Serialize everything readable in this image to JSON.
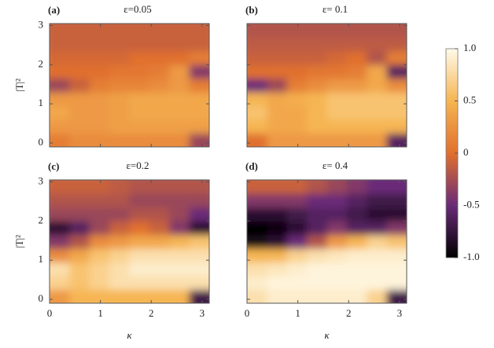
{
  "chart_data": [
    {
      "type": "heatmap",
      "label": "(a)",
      "title": "ε=0.05",
      "ylabel": "|T|²",
      "x": [
        0.196,
        0.589,
        0.982,
        1.374,
        1.767,
        2.16,
        2.553,
        2.945
      ],
      "y": [
        0.075,
        0.425,
        0.775,
        1.125,
        1.475,
        1.825,
        2.175,
        2.525,
        2.875
      ],
      "xlim": [
        0,
        3.1416
      ],
      "ylim": [
        -0.1,
        3.05
      ],
      "xticks": [
        0,
        1,
        2,
        3
      ],
      "yticks": [
        0,
        1,
        2,
        3
      ],
      "z": [
        [
          0.1,
          0.2,
          0.2,
          0.2,
          0.2,
          0.2,
          0.2,
          -0.3
        ],
        [
          0.3,
          0.3,
          0.3,
          0.35,
          0.35,
          0.35,
          0.35,
          0.35
        ],
        [
          0.4,
          0.3,
          0.3,
          0.35,
          0.4,
          0.4,
          0.4,
          0.4
        ],
        [
          0.3,
          0.3,
          0.3,
          0.35,
          0.4,
          0.4,
          0.4,
          0.4
        ],
        [
          -0.3,
          -0.1,
          0.1,
          0.15,
          0.15,
          0.2,
          0.3,
          0.1
        ],
        [
          0,
          0,
          0,
          0.05,
          0.05,
          0.1,
          0.3,
          -0.4
        ],
        [
          -0.05,
          -0.05,
          -0.05,
          -0.05,
          0,
          0,
          0,
          0.1
        ],
        [
          -0.1,
          -0.1,
          -0.1,
          -0.1,
          -0.1,
          -0.1,
          -0.1,
          -0.1
        ],
        [
          -0.1,
          -0.1,
          -0.1,
          -0.1,
          -0.1,
          -0.1,
          -0.1,
          -0.1
        ]
      ]
    },
    {
      "type": "heatmap",
      "label": "(b)",
      "title": "ε= 0.1",
      "x": [
        0.196,
        0.589,
        0.982,
        1.374,
        1.767,
        2.16,
        2.553,
        2.945
      ],
      "y": [
        0.075,
        0.425,
        0.775,
        1.125,
        1.475,
        1.825,
        2.175,
        2.525,
        2.875
      ],
      "xlim": [
        0,
        3.1416
      ],
      "ylim": [
        -0.1,
        3.05
      ],
      "xticks": [
        0,
        1,
        2,
        3
      ],
      "yticks": [
        0,
        1,
        2,
        3
      ],
      "z": [
        [
          0,
          0.3,
          0.3,
          0.3,
          0.3,
          0.3,
          0.3,
          -0.6
        ],
        [
          0.5,
          0.4,
          0.4,
          0.5,
          0.5,
          0.5,
          0.5,
          0.5
        ],
        [
          0.6,
          0.4,
          0.4,
          0.5,
          0.6,
          0.6,
          0.6,
          0.6
        ],
        [
          0.5,
          0.4,
          0.45,
          0.5,
          0.6,
          0.6,
          0.6,
          0.6
        ],
        [
          -0.5,
          -0.3,
          0.1,
          0.2,
          0.3,
          0.3,
          0.4,
          0.2
        ],
        [
          0,
          0,
          0,
          0.05,
          0.05,
          0.1,
          0.4,
          -0.6
        ],
        [
          -0.1,
          -0.1,
          -0.1,
          -0.1,
          -0.05,
          0,
          -0.2,
          0.1
        ],
        [
          -0.15,
          -0.15,
          -0.15,
          -0.15,
          -0.15,
          -0.15,
          -0.15,
          -0.15
        ],
        [
          -0.2,
          -0.2,
          -0.2,
          -0.2,
          -0.2,
          -0.2,
          -0.2,
          -0.2
        ]
      ]
    },
    {
      "type": "heatmap",
      "label": "(c)",
      "title": "ε=0.2",
      "ylabel": "|T|²",
      "xlabel": "κ",
      "x": [
        0.196,
        0.589,
        0.982,
        1.374,
        1.767,
        2.16,
        2.553,
        2.945
      ],
      "y": [
        0.075,
        0.425,
        0.775,
        1.125,
        1.475,
        1.825,
        2.175,
        2.525,
        2.875
      ],
      "xlim": [
        0,
        3.1416
      ],
      "ylim": [
        -0.1,
        3.05
      ],
      "xticks": [
        0,
        1,
        2,
        3
      ],
      "yticks": [
        0,
        1,
        2,
        3
      ],
      "z": [
        [
          0.3,
          0.5,
          0.5,
          0.5,
          0.5,
          0.5,
          0.5,
          -0.7
        ],
        [
          0.7,
          0.6,
          0.7,
          0.8,
          0.8,
          0.8,
          0.8,
          0.8
        ],
        [
          0.8,
          0.6,
          0.7,
          0.8,
          0.9,
          0.9,
          0.9,
          0.9
        ],
        [
          0.2,
          0.4,
          0.6,
          0.7,
          0.8,
          0.8,
          0.8,
          0.8
        ],
        [
          -0.4,
          -0.2,
          0.2,
          0.3,
          0.4,
          0.4,
          0.5,
          0.6
        ],
        [
          -0.8,
          -0.6,
          -0.3,
          -0.1,
          0,
          -0.1,
          -0.4,
          -0.8
        ],
        [
          -0.3,
          -0.3,
          -0.3,
          -0.3,
          -0.2,
          -0.2,
          -0.3,
          -0.5
        ],
        [
          -0.2,
          -0.2,
          -0.2,
          -0.2,
          -0.3,
          -0.3,
          -0.3,
          -0.3
        ],
        [
          -0.1,
          -0.1,
          -0.1,
          -0.15,
          -0.2,
          -0.2,
          -0.2,
          -0.2
        ]
      ]
    },
    {
      "type": "heatmap",
      "label": "(d)",
      "title": "ε= 0.4",
      "xlabel": "κ",
      "x": [
        0.196,
        0.589,
        0.982,
        1.374,
        1.767,
        2.16,
        2.553,
        2.945
      ],
      "y": [
        0.075,
        0.425,
        0.775,
        1.125,
        1.475,
        1.825,
        2.175,
        2.525,
        2.875
      ],
      "xlim": [
        0,
        3.1416
      ],
      "ylim": [
        -0.1,
        3.05
      ],
      "xticks": [
        0,
        1,
        2,
        3
      ],
      "yticks": [
        0,
        1,
        2,
        3
      ],
      "z": [
        [
          0.8,
          0.9,
          0.9,
          0.9,
          0.9,
          0.9,
          0.7,
          -0.7
        ],
        [
          0.9,
          0.95,
          0.95,
          0.95,
          0.95,
          0.95,
          0.95,
          0.95
        ],
        [
          0.8,
          0.85,
          0.9,
          0.95,
          0.95,
          0.95,
          0.95,
          0.95
        ],
        [
          0.5,
          0.5,
          0.7,
          0.8,
          0.85,
          0.9,
          0.9,
          0.9
        ],
        [
          -0.9,
          -0.8,
          -0.5,
          -0.2,
          0.3,
          0.5,
          0.7,
          0.6
        ],
        [
          -1,
          -0.95,
          -0.8,
          -0.6,
          -0.4,
          -0.6,
          -0.6,
          -0.4
        ],
        [
          -0.8,
          -0.8,
          -0.7,
          -0.6,
          -0.6,
          -0.7,
          -0.8,
          -0.8
        ],
        [
          -0.4,
          -0.4,
          -0.4,
          -0.5,
          -0.5,
          -0.6,
          -0.7,
          -0.7
        ],
        [
          -0.1,
          -0.1,
          -0.1,
          -0.2,
          -0.3,
          -0.4,
          -0.5,
          -0.5
        ]
      ]
    }
  ],
  "colorbar": {
    "zlim": [
      -1,
      1
    ],
    "zticks": [
      {
        "value": 1,
        "label": "1.0"
      },
      0.5,
      0,
      -0.5,
      {
        "value": -1,
        "label": "-1.0"
      }
    ],
    "colormap": [
      "#000000",
      "#6a2b78",
      "#e0702e",
      "#f6b552",
      "#fffbea"
    ]
  }
}
